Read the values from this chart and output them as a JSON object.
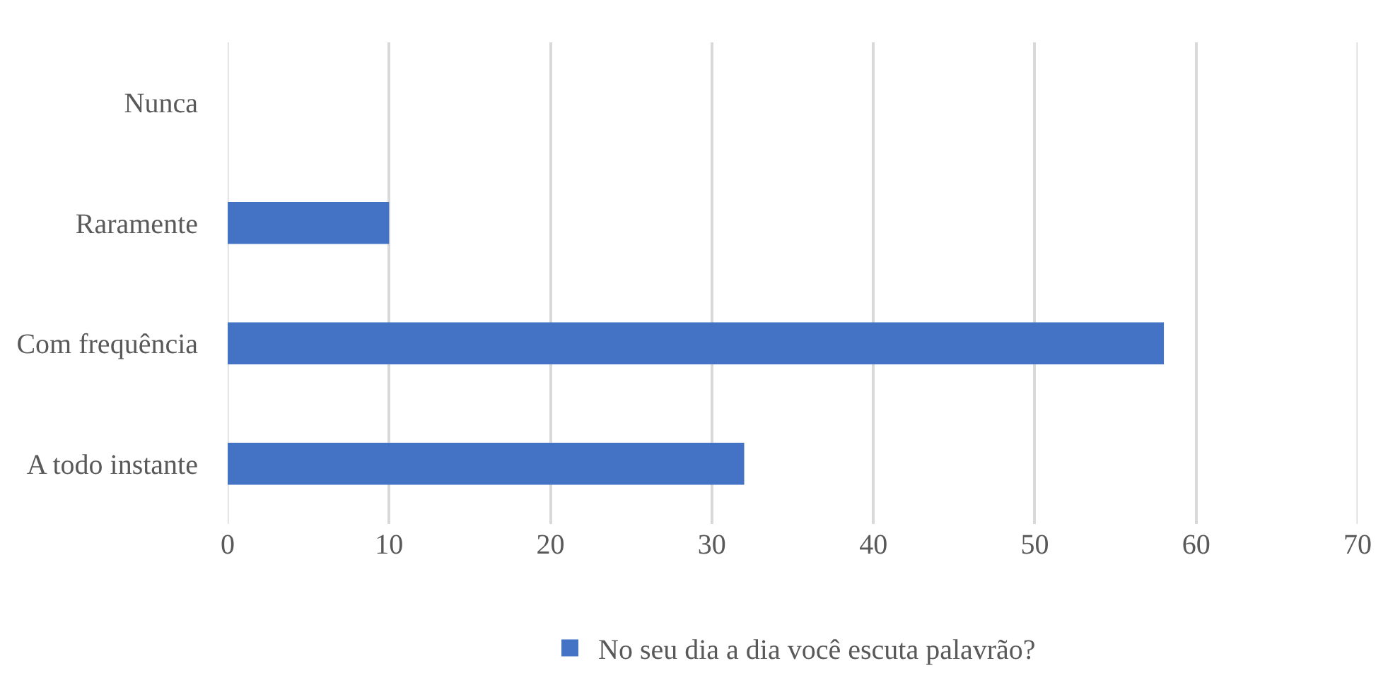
{
  "chart_data": {
    "type": "bar",
    "orientation": "horizontal",
    "categories": [
      "Nunca",
      "Raramente",
      "Com frequência",
      "A todo instante"
    ],
    "series": [
      {
        "name": "No seu dia a dia você escuta palavrão?",
        "color": "#4472c4",
        "values": [
          0,
          10,
          58,
          32
        ]
      }
    ],
    "xlim": [
      0,
      70
    ],
    "xticks": [
      0,
      10,
      20,
      30,
      40,
      50,
      60,
      70
    ],
    "grid": "x",
    "legend": "bottom"
  }
}
